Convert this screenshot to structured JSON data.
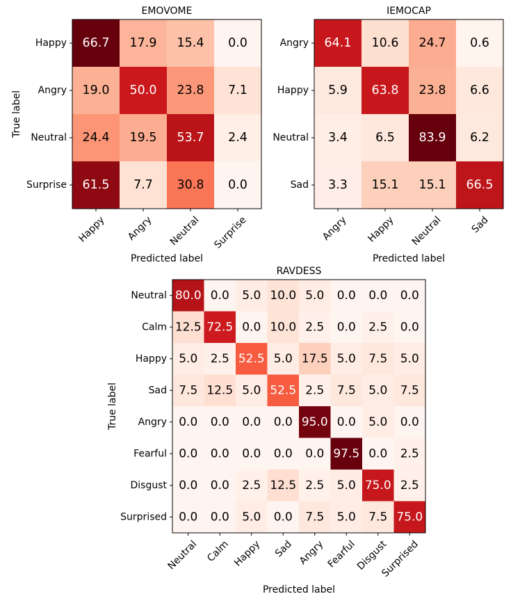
{
  "chart_data": [
    {
      "type": "heatmap",
      "title": "EMOVOME",
      "xlabel": "Predicted label",
      "ylabel": "True label",
      "row_labels": [
        "Happy",
        "Angry",
        "Neutral",
        "Surprise"
      ],
      "col_labels": [
        "Happy",
        "Angry",
        "Neutral",
        "Surprise"
      ],
      "values": [
        [
          "66.7",
          "17.9",
          "15.4",
          "0.0"
        ],
        [
          "19.0",
          "50.0",
          "23.8",
          "7.1"
        ],
        [
          "24.4",
          "19.5",
          "53.7",
          "2.4"
        ],
        [
          "61.5",
          "7.7",
          "30.8",
          "0.0"
        ]
      ],
      "colormap": "Reds",
      "vmin": 0,
      "vmax": 66.7
    },
    {
      "type": "heatmap",
      "title": "IEMOCAP",
      "xlabel": "Predicted label",
      "ylabel": "",
      "row_labels": [
        "Angry",
        "Happy",
        "Neutral",
        "Sad"
      ],
      "col_labels": [
        "Angry",
        "Happy",
        "Neutral",
        "Sad"
      ],
      "values": [
        [
          "64.1",
          "10.6",
          "24.7",
          "0.6"
        ],
        [
          "5.9",
          "63.8",
          "23.8",
          "6.6"
        ],
        [
          "3.4",
          "6.5",
          "83.9",
          "6.2"
        ],
        [
          "3.3",
          "15.1",
          "15.1",
          "66.5"
        ]
      ],
      "colormap": "Reds",
      "vmin": 0,
      "vmax": 83.9
    },
    {
      "type": "heatmap",
      "title": "RAVDESS",
      "xlabel": "Predicted label",
      "ylabel": "True label",
      "row_labels": [
        "Neutral",
        "Calm",
        "Happy",
        "Sad",
        "Angry",
        "Fearful",
        "Disgust",
        "Surprised"
      ],
      "col_labels": [
        "Neutral",
        "Calm",
        "Happy",
        "Sad",
        "Angry",
        "Fearful",
        "Disgust",
        "Surprised"
      ],
      "values": [
        [
          "80.0",
          "0.0",
          "5.0",
          "10.0",
          "5.0",
          "0.0",
          "0.0",
          "0.0"
        ],
        [
          "12.5",
          "72.5",
          "0.0",
          "10.0",
          "2.5",
          "0.0",
          "2.5",
          "0.0"
        ],
        [
          "5.0",
          "2.5",
          "52.5",
          "5.0",
          "17.5",
          "5.0",
          "7.5",
          "5.0"
        ],
        [
          "7.5",
          "12.5",
          "5.0",
          "52.5",
          "2.5",
          "7.5",
          "5.0",
          "7.5"
        ],
        [
          "0.0",
          "0.0",
          "0.0",
          "0.0",
          "95.0",
          "0.0",
          "5.0",
          "0.0"
        ],
        [
          "0.0",
          "0.0",
          "0.0",
          "0.0",
          "0.0",
          "97.5",
          "0.0",
          "2.5"
        ],
        [
          "0.0",
          "0.0",
          "2.5",
          "12.5",
          "2.5",
          "5.0",
          "75.0",
          "2.5"
        ],
        [
          "0.0",
          "0.0",
          "5.0",
          "0.0",
          "7.5",
          "5.0",
          "7.5",
          "75.0"
        ]
      ],
      "colormap": "Reds",
      "vmin": 0,
      "vmax": 97.5
    }
  ]
}
